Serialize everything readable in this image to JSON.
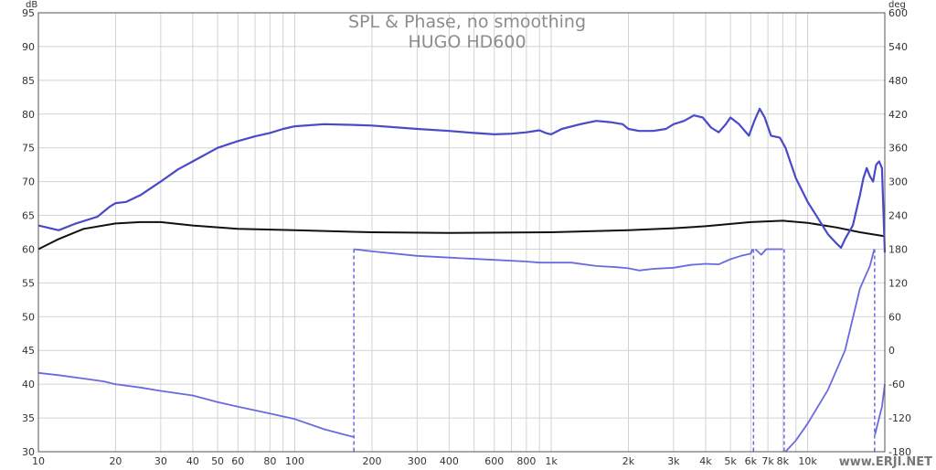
{
  "chart_data": {
    "type": "line",
    "title": "SPL & Phase, no smoothing",
    "subtitle": "HUGO HD600",
    "watermark": "www.ERJI.NET",
    "x_axis": {
      "scale": "log",
      "range": [
        10,
        20000
      ],
      "tick_values": [
        10,
        20,
        30,
        40,
        50,
        60,
        80,
        100,
        200,
        300,
        400,
        600,
        800,
        1000,
        2000,
        3000,
        4000,
        5000,
        6000,
        7000,
        8000,
        10000
      ],
      "tick_labels": [
        "10",
        "20",
        "30",
        "40",
        "50",
        "60",
        "80",
        "100",
        "200",
        "300",
        "400",
        "600",
        "800",
        "1k",
        "2k",
        "3k",
        "4k",
        "5k",
        "6k",
        "7k",
        "8k",
        "10k"
      ]
    },
    "y_left": {
      "unit": "dB",
      "range": [
        30,
        95
      ],
      "tick_labels": [
        "30",
        "35",
        "40",
        "45",
        "50",
        "55",
        "60",
        "65",
        "70",
        "75",
        "80",
        "85",
        "90",
        "95"
      ]
    },
    "y_right": {
      "unit": "deg",
      "range": [
        -180,
        600
      ],
      "tick_labels": [
        "-180",
        "-120",
        "-60",
        "0",
        "60",
        "120",
        "180",
        "240",
        "300",
        "360",
        "420",
        "480",
        "540",
        "600"
      ]
    },
    "grid": true,
    "colors": {
      "spl": "#4a4ac8",
      "phase": "#6a6ae0",
      "black_curve": "#111111",
      "grid": "#d2d2d2",
      "frame": "#555555"
    },
    "series": [
      {
        "role": "spl",
        "axis": "left",
        "points": [
          [
            10,
            63.5
          ],
          [
            12,
            62.8
          ],
          [
            14,
            63.8
          ],
          [
            17,
            64.8
          ],
          [
            19,
            66.3
          ],
          [
            20,
            66.8
          ],
          [
            22,
            67.0
          ],
          [
            25,
            68.0
          ],
          [
            30,
            70.0
          ],
          [
            35,
            71.8
          ],
          [
            40,
            73.0
          ],
          [
            50,
            75.0
          ],
          [
            60,
            76.0
          ],
          [
            70,
            76.7
          ],
          [
            80,
            77.2
          ],
          [
            90,
            77.8
          ],
          [
            100,
            78.2
          ],
          [
            130,
            78.5
          ],
          [
            170,
            78.4
          ],
          [
            200,
            78.3
          ],
          [
            300,
            77.8
          ],
          [
            400,
            77.5
          ],
          [
            500,
            77.2
          ],
          [
            600,
            77.0
          ],
          [
            700,
            77.1
          ],
          [
            800,
            77.3
          ],
          [
            900,
            77.6
          ],
          [
            950,
            77.2
          ],
          [
            1000,
            77.0
          ],
          [
            1100,
            77.8
          ],
          [
            1300,
            78.5
          ],
          [
            1500,
            79.0
          ],
          [
            1700,
            78.8
          ],
          [
            1900,
            78.5
          ],
          [
            2000,
            77.8
          ],
          [
            2200,
            77.5
          ],
          [
            2500,
            77.5
          ],
          [
            2800,
            77.8
          ],
          [
            3000,
            78.5
          ],
          [
            3300,
            79.0
          ],
          [
            3600,
            79.8
          ],
          [
            3900,
            79.5
          ],
          [
            4200,
            78.0
          ],
          [
            4500,
            77.3
          ],
          [
            4800,
            78.5
          ],
          [
            5000,
            79.5
          ],
          [
            5400,
            78.5
          ],
          [
            5900,
            76.8
          ],
          [
            6200,
            79.0
          ],
          [
            6500,
            80.8
          ],
          [
            6800,
            79.5
          ],
          [
            7200,
            76.8
          ],
          [
            7800,
            76.5
          ],
          [
            8200,
            75.0
          ],
          [
            9000,
            70.5
          ],
          [
            10000,
            67.0
          ],
          [
            11000,
            64.5
          ],
          [
            12000,
            62.2
          ],
          [
            13000,
            60.8
          ],
          [
            13500,
            60.2
          ],
          [
            14000,
            61.5
          ],
          [
            15000,
            63.5
          ],
          [
            16000,
            68.0
          ],
          [
            16500,
            70.5
          ],
          [
            17000,
            72.0
          ],
          [
            17500,
            70.8
          ],
          [
            18000,
            70.0
          ],
          [
            18500,
            72.5
          ],
          [
            19000,
            73.0
          ],
          [
            19500,
            72.0
          ],
          [
            20000,
            59.5
          ]
        ]
      },
      {
        "role": "black_curve",
        "axis": "left",
        "points": [
          [
            10,
            60.0
          ],
          [
            12,
            61.5
          ],
          [
            15,
            63.0
          ],
          [
            20,
            63.8
          ],
          [
            25,
            64.0
          ],
          [
            30,
            64.0
          ],
          [
            40,
            63.5
          ],
          [
            60,
            63.0
          ],
          [
            100,
            62.8
          ],
          [
            200,
            62.5
          ],
          [
            400,
            62.4
          ],
          [
            1000,
            62.5
          ],
          [
            2000,
            62.8
          ],
          [
            3000,
            63.1
          ],
          [
            4000,
            63.4
          ],
          [
            6000,
            64.0
          ],
          [
            8000,
            64.2
          ],
          [
            10000,
            63.9
          ],
          [
            13000,
            63.2
          ],
          [
            16000,
            62.5
          ],
          [
            20000,
            61.9
          ]
        ]
      },
      {
        "role": "phase",
        "axis": "right",
        "segments": [
          [
            [
              10,
              -40
            ],
            [
              12,
              -44
            ],
            [
              15,
              -50
            ],
            [
              18,
              -55
            ],
            [
              20,
              -60
            ],
            [
              25,
              -66
            ],
            [
              30,
              -72
            ],
            [
              40,
              -80
            ],
            [
              50,
              -92
            ],
            [
              60,
              -100
            ],
            [
              80,
              -112
            ],
            [
              100,
              -122
            ],
            [
              130,
              -140
            ],
            [
              170,
              -154
            ]
          ],
          [
            [
              170,
              180
            ],
            [
              200,
              176
            ],
            [
              300,
              168
            ],
            [
              400,
              165
            ],
            [
              600,
              161
            ],
            [
              800,
              158
            ],
            [
              900,
              156
            ],
            [
              1000,
              156
            ],
            [
              1200,
              156
            ],
            [
              1500,
              150
            ],
            [
              1800,
              148
            ],
            [
              2000,
              146
            ],
            [
              2200,
              142
            ],
            [
              2500,
              145
            ],
            [
              3000,
              147
            ],
            [
              3500,
              152
            ],
            [
              4000,
              154
            ],
            [
              4500,
              153
            ],
            [
              5000,
              162
            ],
            [
              5500,
              168
            ],
            [
              6000,
              172
            ],
            [
              6100,
              180
            ]
          ],
          [
            [
              6250,
              180
            ],
            [
              6600,
              170
            ],
            [
              6900,
              180
            ],
            [
              7600,
              180
            ],
            [
              8000,
              180
            ]
          ],
          [
            [
              8200,
              -180
            ],
            [
              9000,
              -160
            ],
            [
              10000,
              -130
            ],
            [
              12000,
              -70
            ],
            [
              14000,
              0
            ],
            [
              16000,
              110
            ],
            [
              17500,
              150
            ],
            [
              18200,
              180
            ]
          ],
          [
            [
              18300,
              -150
            ],
            [
              19000,
              -120
            ],
            [
              19500,
              -100
            ],
            [
              20000,
              -60
            ]
          ]
        ],
        "wraps_at": [
          170,
          6150,
          8100,
          18250
        ]
      }
    ]
  }
}
